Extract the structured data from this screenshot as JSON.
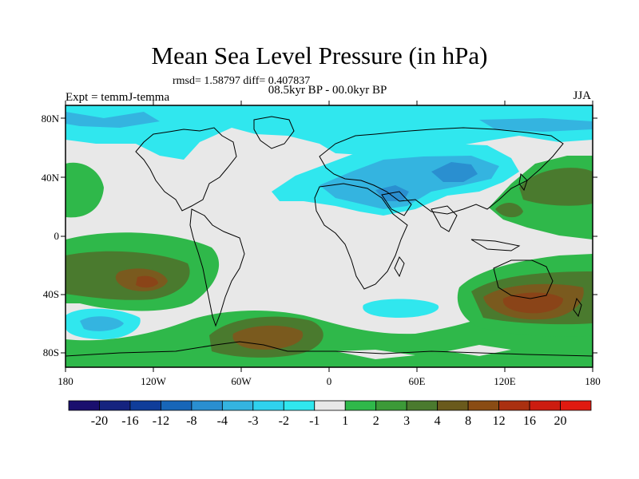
{
  "title": "Mean Sea Level Pressure (in hPa)",
  "stats": "rmsd= 1.58797 diff= 0.407837",
  "period": "08.5kyr BP - 00.0kyr BP",
  "experiment": "Expt = temmJ-temma",
  "season": "JJA",
  "lat_labels": [
    "80N",
    "40N",
    "0",
    "40S",
    "80S"
  ],
  "lon_labels": [
    "180",
    "120W",
    "60W",
    "0",
    "60E",
    "120E",
    "180"
  ],
  "colorbar": {
    "labels": [
      "-20",
      "-16",
      "-12",
      "-8",
      "-4",
      "-3",
      "-2",
      "-1",
      "1",
      "2",
      "3",
      "4",
      "8",
      "12",
      "16",
      "20"
    ],
    "colors": [
      "#1a0f6e",
      "#15237f",
      "#0f3d9a",
      "#1766b8",
      "#2a8fd0",
      "#34b4e0",
      "#2fd2ee",
      "#30e7ee",
      "#e8e8e8",
      "#2fb84a",
      "#3c9a38",
      "#4a7a2e",
      "#6a5a1c",
      "#8a4c14",
      "#aa3010",
      "#cc1c10",
      "#e01a10"
    ]
  },
  "map_colors": {
    "neutral": "#e8e8e8",
    "neg_light": "#30e7ee",
    "neg_mid": "#34b4e0",
    "neg_strong": "#2a8fd0",
    "pos_light": "#2fb84a",
    "pos_mid": "#4a7a2e",
    "pos_strong": "#7a5a1e",
    "pos_max": "#8a4418",
    "coast": "#000000"
  }
}
